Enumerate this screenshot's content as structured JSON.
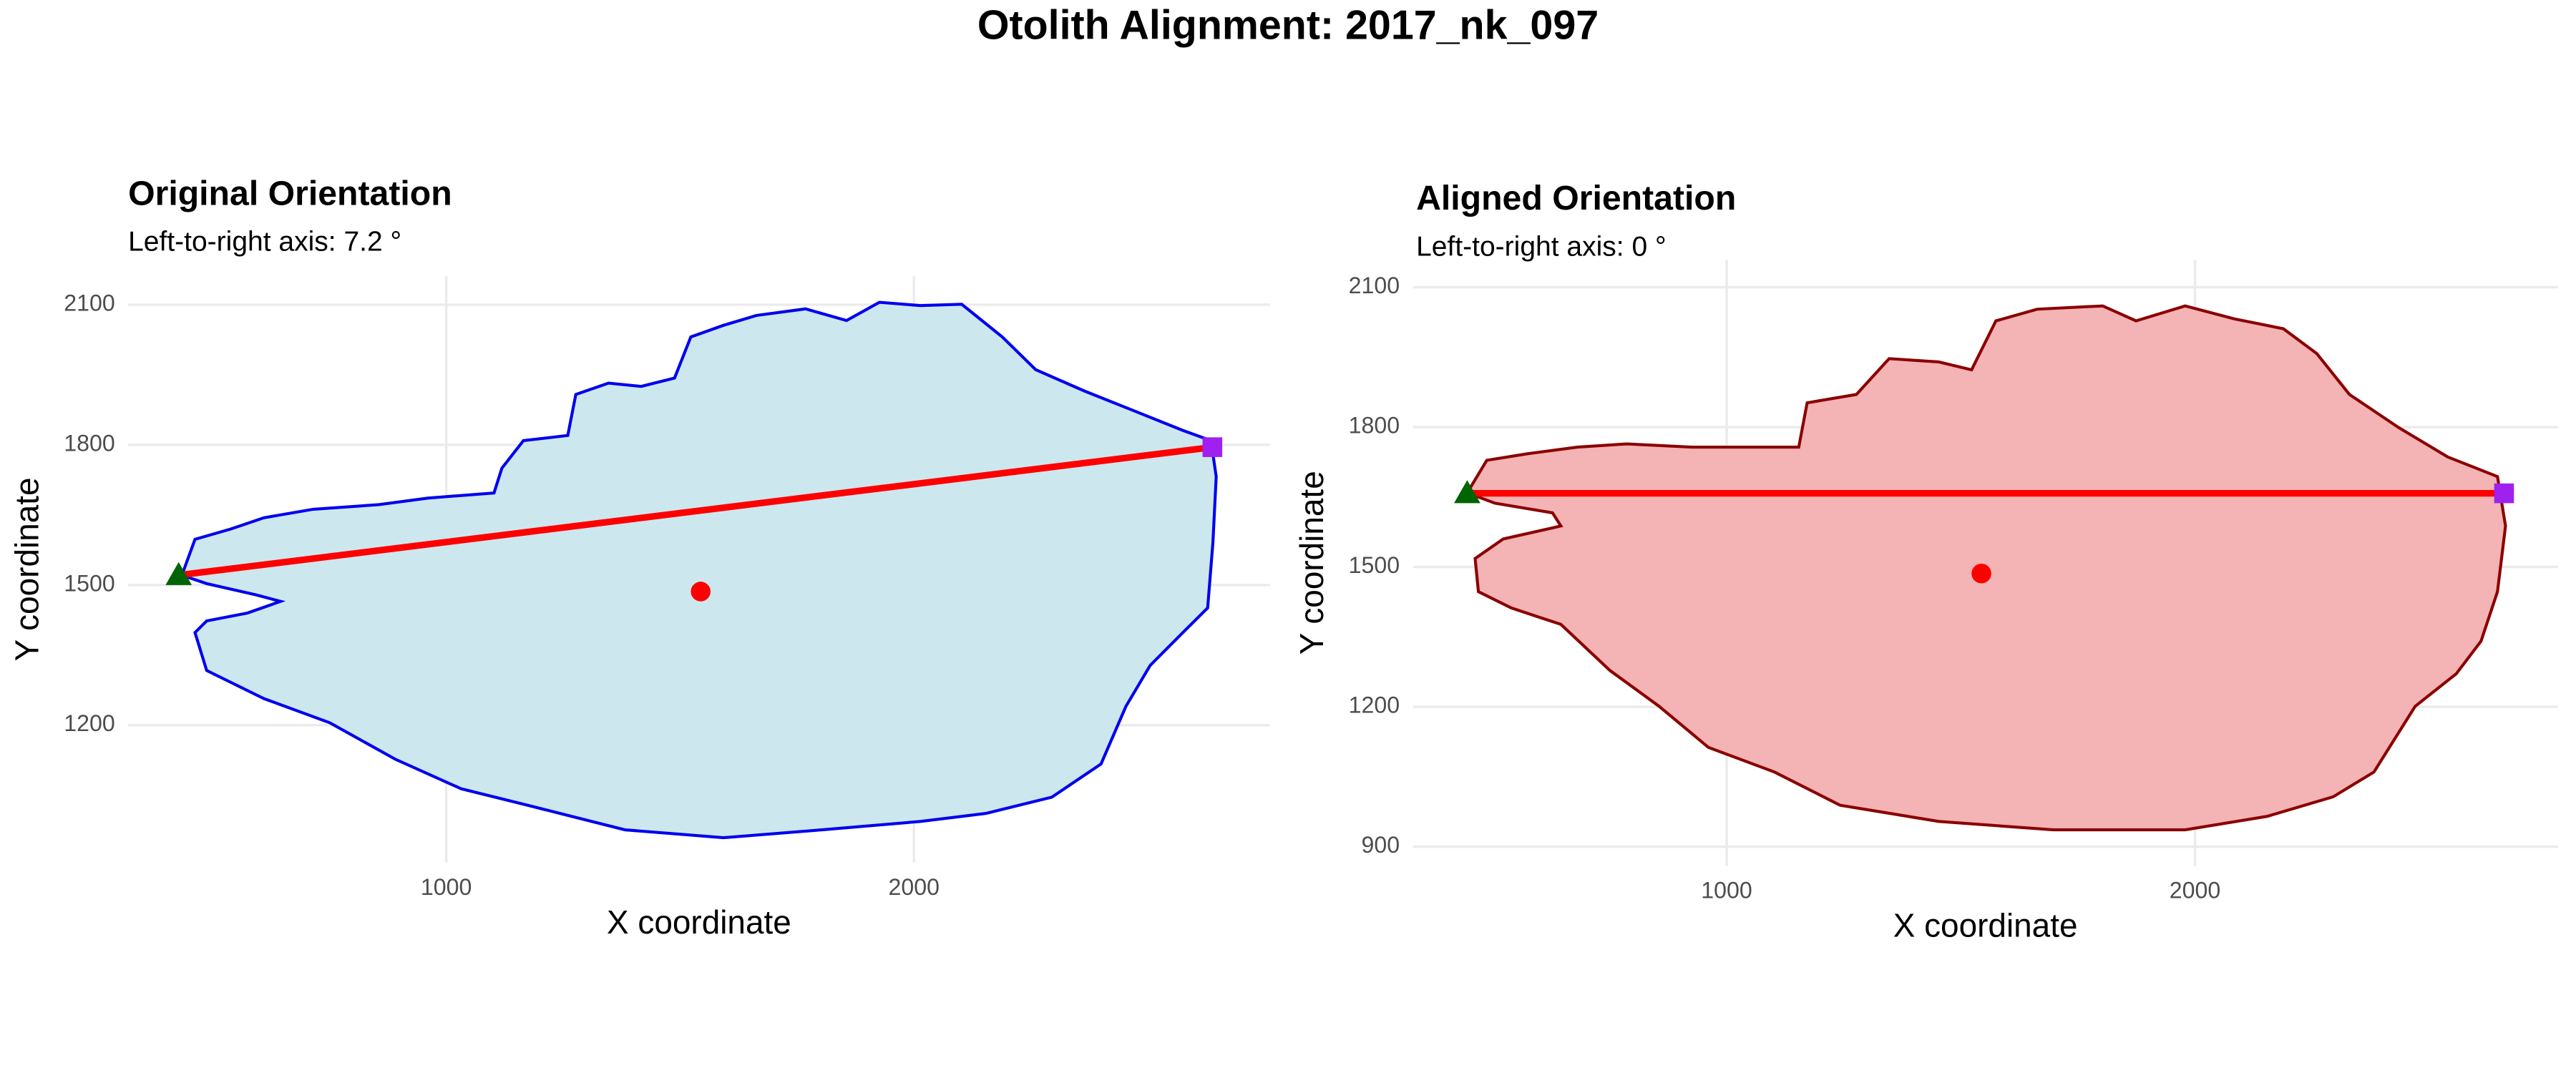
{
  "title": "Otolith Alignment: 2017_nk_097",
  "chart_data": [
    {
      "type": "shape",
      "title": "Original Orientation",
      "subtitle": "Left-to-right axis: 7.2 °",
      "xlabel": "X coordinate",
      "ylabel": "Y coordinate",
      "xlim": [
        320,
        2761
      ],
      "ylim": [
        906,
        2161
      ],
      "xticks": [
        1000,
        2000
      ],
      "yticks": [
        1200,
        1500,
        1800,
        2100
      ],
      "grid": true,
      "outline": {
        "color": "#0000ee",
        "fill": "#cde7ee",
        "x": [
          435,
          463,
          540,
          610,
          716,
          856,
          961,
          1102,
          1119,
          1165,
          1260,
          1277,
          1347,
          1417,
          1488,
          1523,
          1593,
          1663,
          1768,
          1856,
          1926,
          2014,
          2102,
          2189,
          2260,
          2365,
          2470,
          2575,
          2635,
          2646,
          2639,
          2628,
          2575,
          2505,
          2453,
          2400,
          2295,
          2154,
          2014,
          1803,
          1593,
          1382,
          1172,
          1032,
          891,
          751,
          610,
          488,
          463,
          488,
          575,
          646,
          593,
          488
        ],
        "y": [
          1521,
          1598,
          1620,
          1644,
          1662,
          1672,
          1686,
          1697,
          1750,
          1809,
          1820,
          1908,
          1932,
          1925,
          1943,
          2031,
          2056,
          2077,
          2091,
          2066,
          2105,
          2098,
          2101,
          2031,
          1961,
          1915,
          1873,
          1831,
          1809,
          1732,
          1591,
          1451,
          1398,
          1328,
          1240,
          1117,
          1046,
          1011,
          994,
          976,
          959,
          976,
          1029,
          1064,
          1127,
          1205,
          1257,
          1317,
          1398,
          1423,
          1440,
          1465,
          1479,
          1503
        ]
      },
      "axis_line": {
        "color": "#ff0000",
        "x": [
          428,
          2638
        ],
        "y": [
          1521,
          1795
        ]
      },
      "start": {
        "color": "#006400",
        "x": 428,
        "y": 1521
      },
      "end": {
        "color": "#a020f0",
        "x": 2638,
        "y": 1795
      },
      "centroid": {
        "color": "#ff0000",
        "x": 1544,
        "y": 1486
      }
    },
    {
      "type": "shape",
      "title": "Aligned Orientation",
      "subtitle": "Left-to-right axis: 0 °",
      "xlabel": "X coordinate",
      "ylabel": "Y coordinate",
      "xlim": [
        330,
        2775
      ],
      "ylim": [
        859,
        2159
      ],
      "xticks": [
        1000,
        2000
      ],
      "yticks": [
        900,
        1200,
        1500,
        1800,
        2100
      ],
      "grid": true,
      "outline": {
        "color": "#8b0000",
        "fill": "#f4b3b4",
        "x": [
          446,
          488,
          575,
          681,
          786,
          926,
          1032,
          1154,
          1172,
          1277,
          1347,
          1453,
          1523,
          1575,
          1663,
          1803,
          1874,
          1979,
          2084,
          2189,
          2260,
          2330,
          2435,
          2540,
          2646,
          2663,
          2646,
          2611,
          2558,
          2470,
          2382,
          2295,
          2154,
          1979,
          1698,
          1453,
          1242,
          1102,
          961,
          856,
          751,
          646,
          540,
          470,
          463,
          523,
          646,
          628,
          505
        ],
        "y": [
          1659,
          1729,
          1743,
          1757,
          1764,
          1757,
          1757,
          1757,
          1852,
          1870,
          1947,
          1940,
          1923,
          2028,
          2053,
          2060,
          2028,
          2060,
          2032,
          2011,
          1958,
          1870,
          1799,
          1736,
          1694,
          1588,
          1447,
          1341,
          1271,
          1201,
          1060,
          1007,
          965,
          936,
          936,
          954,
          989,
          1060,
          1113,
          1201,
          1278,
          1377,
          1412,
          1447,
          1518,
          1560,
          1588,
          1616,
          1637
        ]
      },
      "axis_line": {
        "color": "#ff0000",
        "x": [
          446,
          2660
        ],
        "y": [
          1658,
          1658
        ]
      },
      "start": {
        "color": "#006400",
        "x": 446,
        "y": 1658
      },
      "end": {
        "color": "#a020f0",
        "x": 2660,
        "y": 1658
      },
      "centroid": {
        "color": "#ff0000",
        "x": 1544,
        "y": 1486
      }
    }
  ]
}
